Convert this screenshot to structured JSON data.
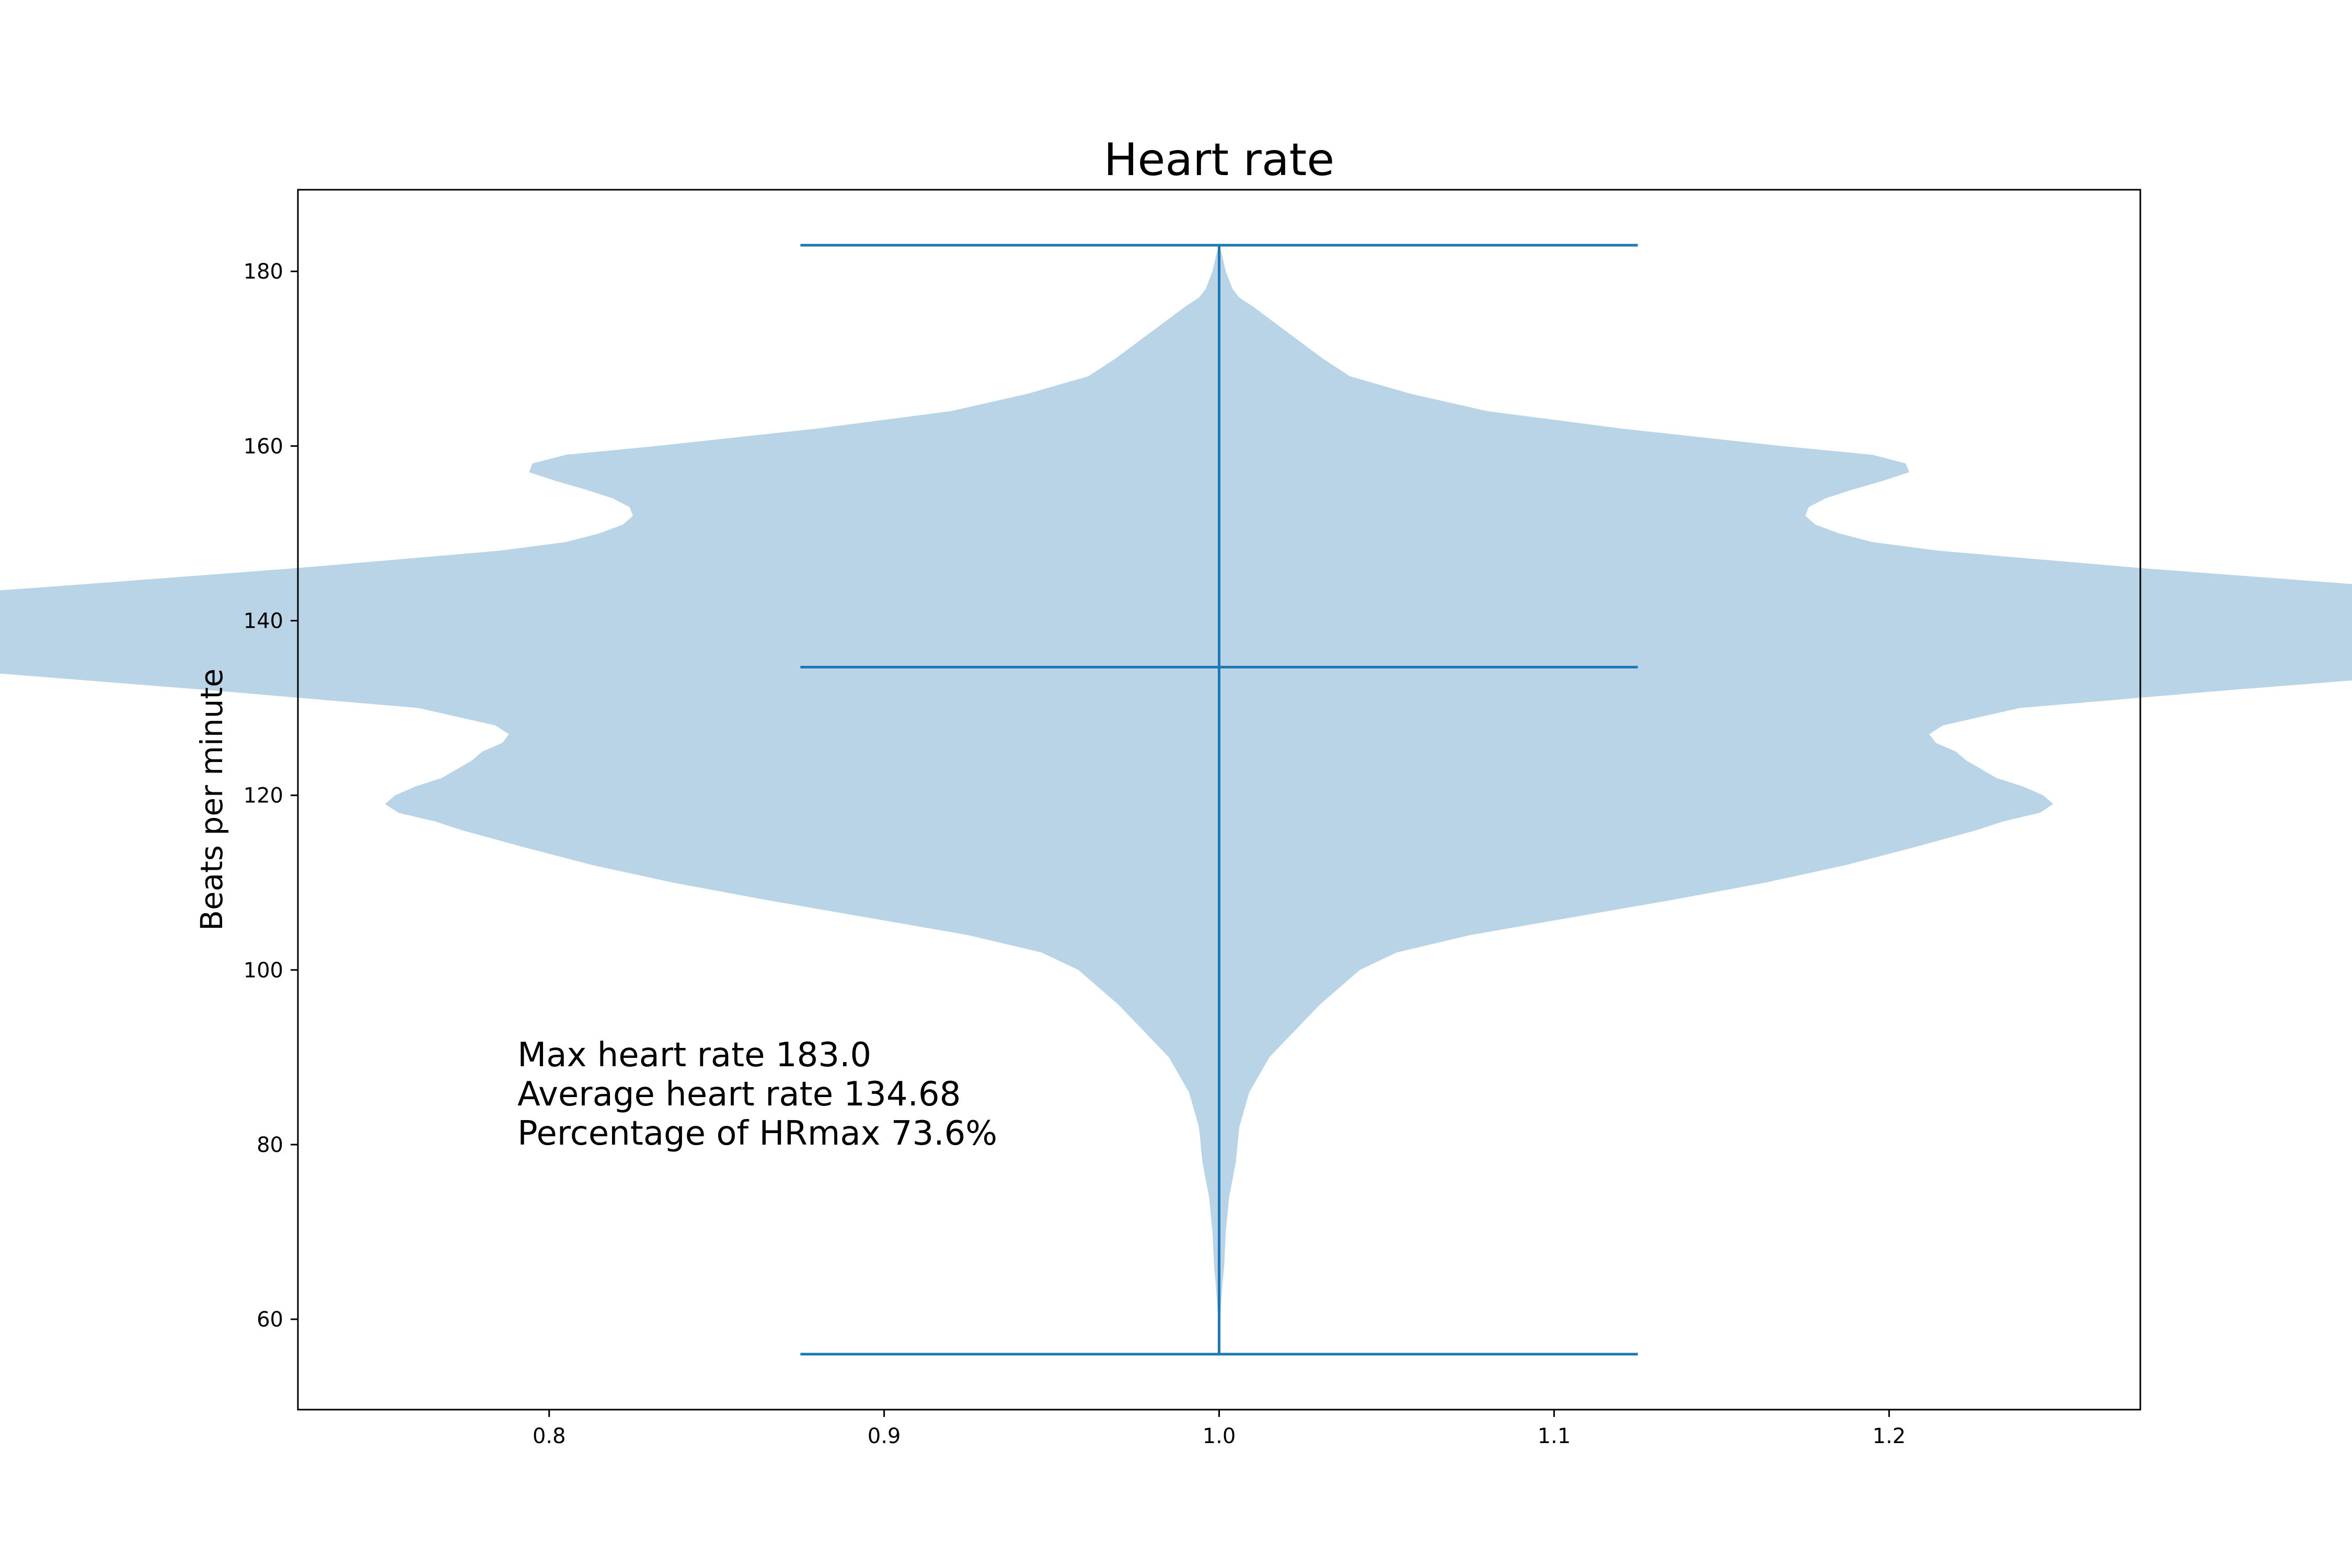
{
  "chart_data": {
    "type": "violin",
    "title": "Heart rate",
    "xlabel": "",
    "ylabel": "Beats per minute",
    "xlim": [
      0.725,
      1.275
    ],
    "ylim": [
      49.65,
      189.35
    ],
    "x_ticks": [
      0.8,
      0.9,
      1.0,
      1.1,
      1.2
    ],
    "x_tick_labels": [
      "0.8",
      "0.9",
      "1.0",
      "1.1",
      "1.2"
    ],
    "y_ticks": [
      60,
      80,
      100,
      120,
      140,
      160,
      180
    ],
    "y_tick_labels": [
      "60",
      "80",
      "100",
      "120",
      "140",
      "160",
      "180"
    ],
    "grid": false,
    "violin": {
      "position": 1.0,
      "min": 56,
      "max": 183,
      "mean": 134.68,
      "whisker_cap_halfwidth": 0.125,
      "color": "#1f77b4",
      "fill_color": "#bad4e7",
      "density_profile": [
        [
          56,
          0.0
        ],
        [
          60,
          0.0003
        ],
        [
          64,
          0.001
        ],
        [
          66,
          0.0015
        ],
        [
          70,
          0.002
        ],
        [
          74,
          0.003
        ],
        [
          78,
          0.005
        ],
        [
          82,
          0.006
        ],
        [
          86,
          0.009
        ],
        [
          90,
          0.015
        ],
        [
          94,
          0.025
        ],
        [
          96,
          0.03
        ],
        [
          98,
          0.036
        ],
        [
          100,
          0.042
        ],
        [
          102,
          0.053
        ],
        [
          104,
          0.075
        ],
        [
          106,
          0.105
        ],
        [
          108,
          0.135
        ],
        [
          110,
          0.163
        ],
        [
          112,
          0.187
        ],
        [
          114,
          0.207
        ],
        [
          116,
          0.226
        ],
        [
          117,
          0.234
        ],
        [
          118,
          0.245
        ],
        [
          119,
          0.249
        ],
        [
          120,
          0.246
        ],
        [
          121,
          0.24
        ],
        [
          122,
          0.232
        ],
        [
          124,
          0.223
        ],
        [
          125,
          0.22
        ],
        [
          126,
          0.214
        ],
        [
          127,
          0.212
        ],
        [
          128,
          0.216
        ],
        [
          130,
          0.239
        ],
        [
          132,
          0.3
        ],
        [
          134,
          0.366
        ],
        [
          136,
          0.417
        ],
        [
          137,
          0.449
        ],
        [
          138,
          0.48
        ],
        [
          139,
          0.495
        ],
        [
          140,
          0.487
        ],
        [
          141,
          0.46
        ],
        [
          142,
          0.418
        ],
        [
          144,
          0.345
        ],
        [
          146,
          0.276
        ],
        [
          148,
          0.215
        ],
        [
          149,
          0.195
        ],
        [
          150,
          0.185
        ],
        [
          151,
          0.178
        ],
        [
          152,
          0.175
        ],
        [
          153,
          0.176
        ],
        [
          154,
          0.181
        ],
        [
          155,
          0.189
        ],
        [
          156,
          0.198
        ],
        [
          157,
          0.206
        ],
        [
          158,
          0.205
        ],
        [
          159,
          0.195
        ],
        [
          160,
          0.168
        ],
        [
          162,
          0.12
        ],
        [
          164,
          0.08
        ],
        [
          166,
          0.057
        ],
        [
          168,
          0.039
        ],
        [
          170,
          0.031
        ],
        [
          172,
          0.024
        ],
        [
          174,
          0.017
        ],
        [
          176,
          0.01
        ],
        [
          177,
          0.006
        ],
        [
          178,
          0.004
        ],
        [
          180,
          0.002
        ],
        [
          182,
          0.0008
        ],
        [
          183,
          0.0
        ]
      ]
    },
    "annotations": [
      "Max heart rate 183.0",
      "Average heart rate 134.68",
      "Percentage of HRmax 73.6%"
    ]
  }
}
